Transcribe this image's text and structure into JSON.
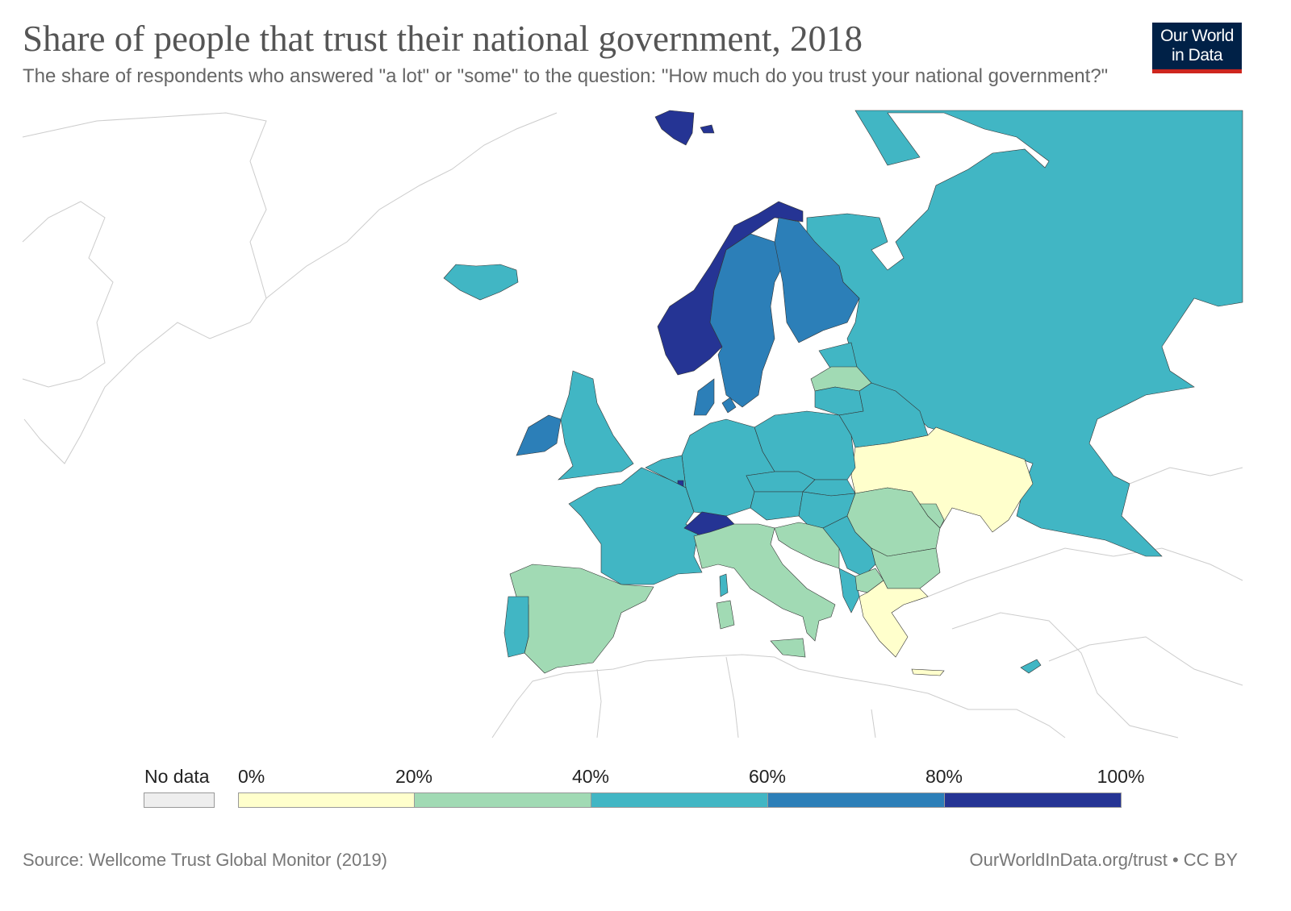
{
  "header": {
    "title": "Share of people that trust their national government, 2018",
    "subtitle": "The share of respondents who answered \"a lot\" or \"some\" to the question: \"How much do you trust your national government?\"",
    "logo_line1": "Our World",
    "logo_line2": "in Data"
  },
  "legend": {
    "no_data_label": "No data",
    "no_data_color": "#eeeeee",
    "ticks": [
      "0%",
      "20%",
      "40%",
      "60%",
      "80%",
      "100%"
    ],
    "bins": [
      {
        "range": [
          0,
          20
        ],
        "color": "#ffffcc"
      },
      {
        "range": [
          20,
          40
        ],
        "color": "#a1dab4"
      },
      {
        "range": [
          40,
          60
        ],
        "color": "#41b6c4"
      },
      {
        "range": [
          60,
          80
        ],
        "color": "#2c7fb8"
      },
      {
        "range": [
          80,
          100
        ],
        "color": "#253494"
      }
    ]
  },
  "footer": {
    "source": "Source: Wellcome Trust Global Monitor (2019)",
    "credit": "OurWorldInData.org/trust • CC BY"
  }
}
